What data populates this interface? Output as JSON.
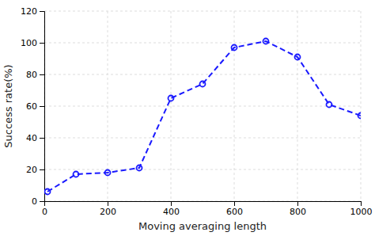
{
  "chart_data": {
    "type": "line",
    "xlabel": "Moving averaging length",
    "ylabel": "Success rate(%)",
    "x": [
      10,
      100,
      200,
      300,
      400,
      500,
      600,
      700,
      800,
      900,
      1000
    ],
    "values": [
      6,
      17,
      18,
      21,
      65,
      74,
      97,
      101,
      91,
      61,
      54
    ],
    "color": "#1a1aff",
    "marker": "circle",
    "line_style": "dashed",
    "xlim": [
      0,
      1000
    ],
    "ylim": [
      0,
      120
    ],
    "xticks": [
      0,
      200,
      400,
      600,
      800,
      1000
    ],
    "yticks": [
      0,
      20,
      40,
      60,
      80,
      100,
      120
    ],
    "grid": true
  }
}
